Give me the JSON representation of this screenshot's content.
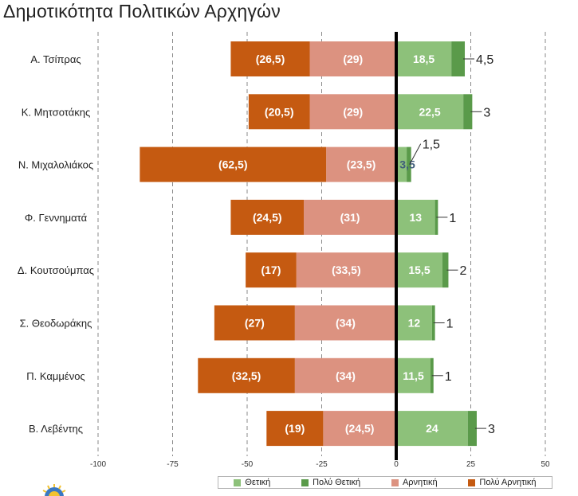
{
  "title": "Δημοτικότητα Πολιτικών Αρχηγών",
  "chart_data": {
    "type": "bar",
    "orientation": "horizontal",
    "stacked": "diverging",
    "title": "Δημοτικότητα Πολιτικών Αρχηγών",
    "categories": [
      "Α. Τσίπρας",
      "Κ. Μητσοτάκης",
      "Ν. Μιχαλολιάκος",
      "Φ. Γεννηματά",
      "Δ. Κουτσούμπας",
      "Σ. Θεοδωράκης",
      "Π. Καμμένος",
      "Β. Λεβέντης"
    ],
    "series": [
      {
        "name": "Θετική",
        "color": "#8dc17a",
        "values": [
          18.5,
          22.5,
          3.5,
          13,
          15.5,
          12,
          11.5,
          24
        ],
        "labels": [
          "18,5",
          "22,5",
          "3,5",
          "13",
          "15,5",
          "12",
          "11,5",
          "24"
        ]
      },
      {
        "name": "Πολύ Θετική",
        "color": "#5a9a4a",
        "values": [
          4.5,
          3,
          1.5,
          1,
          2,
          1,
          1,
          3
        ],
        "labels": [
          "4,5",
          "3",
          "1,5",
          "1",
          "2",
          "1",
          "1",
          "3"
        ]
      },
      {
        "name": "Αρνητική",
        "color": "#dc9280",
        "values": [
          -29,
          -29,
          -23.5,
          -31,
          -33.5,
          -34,
          -34,
          -24.5
        ],
        "labels": [
          "(29)",
          "(29)",
          "(23,5)",
          "(31)",
          "(33,5)",
          "(34)",
          "(34)",
          "(24,5)"
        ]
      },
      {
        "name": "Πολύ Αρνητική",
        "color": "#c55a11",
        "values": [
          -26.5,
          -20.5,
          -62.5,
          -24.5,
          -17,
          -27,
          -32.5,
          -19
        ],
        "labels": [
          "(26,5)",
          "(20,5)",
          "(62,5)",
          "(24,5)",
          "(17)",
          "(27)",
          "(32,5)",
          "(19)"
        ]
      }
    ],
    "xlim": [
      -100,
      50
    ],
    "xticks": [
      -100,
      -75,
      -50,
      -25,
      0,
      25,
      50
    ],
    "xtick_labels": [
      "-100",
      "-75",
      "-50",
      "-25",
      "0",
      "25",
      "50"
    ],
    "grid": "vertical dashed",
    "legend": "bottom"
  }
}
